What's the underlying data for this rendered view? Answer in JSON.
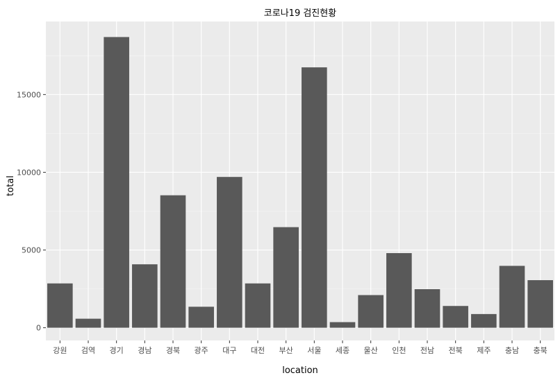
{
  "chart_data": {
    "type": "bar",
    "title": "코로나19 검진현황",
    "xlabel": "location",
    "ylabel": "total",
    "categories": [
      "강원",
      "검역",
      "경기",
      "경남",
      "경북",
      "광주",
      "대구",
      "대전",
      "부산",
      "서울",
      "세종",
      "울산",
      "인천",
      "전남",
      "전북",
      "제주",
      "충남",
      "충북"
    ],
    "values": [
      2850,
      580,
      18700,
      4080,
      8520,
      1350,
      9700,
      2850,
      6470,
      16750,
      360,
      2100,
      4800,
      2480,
      1400,
      880,
      3980,
      3060
    ],
    "yticks": [
      0,
      5000,
      10000,
      15000
    ],
    "ylim": [
      -820,
      19700
    ],
    "grid": true,
    "colors": {
      "bar": "#595959",
      "panel": "#ebebeb",
      "grid_major": "#ffffff",
      "grid_minor": "#f5f5f5"
    }
  }
}
